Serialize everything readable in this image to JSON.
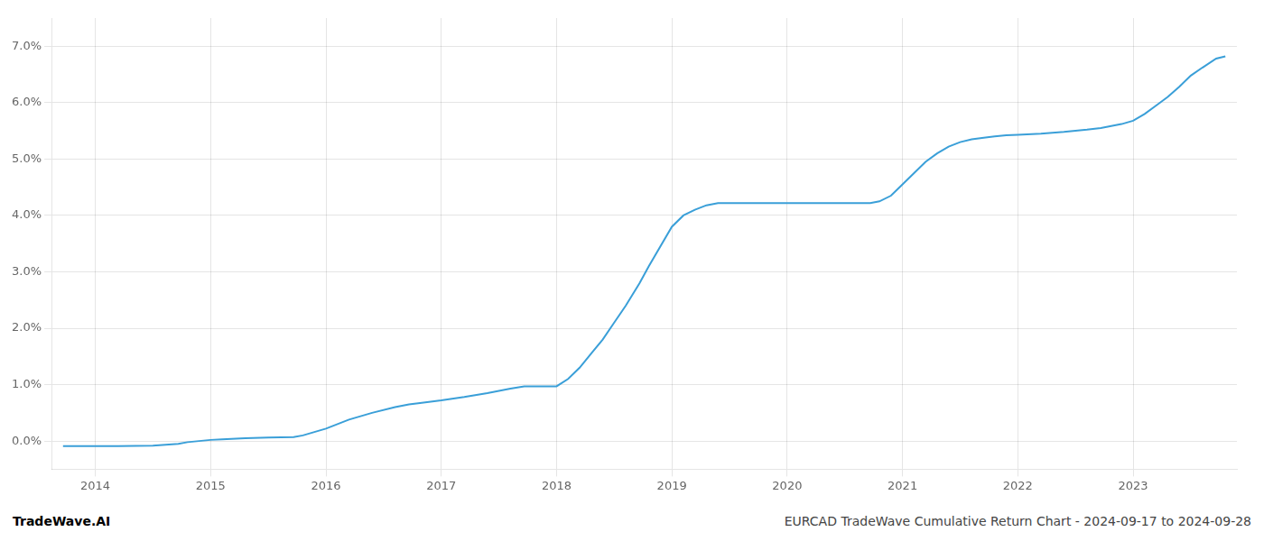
{
  "chart_data": {
    "type": "line",
    "x": [
      2013.72,
      2013.8,
      2013.95,
      2014.0,
      2014.2,
      2014.5,
      2014.72,
      2014.8,
      2015.0,
      2015.1,
      2015.3,
      2015.5,
      2015.72,
      2015.8,
      2016.0,
      2016.2,
      2016.4,
      2016.6,
      2016.72,
      2016.8,
      2017.0,
      2017.2,
      2017.4,
      2017.6,
      2017.72,
      2017.8,
      2017.9,
      2018.0,
      2018.1,
      2018.2,
      2018.3,
      2018.4,
      2018.5,
      2018.6,
      2018.72,
      2018.8,
      2019.0,
      2019.1,
      2019.2,
      2019.3,
      2019.4,
      2019.5,
      2019.6,
      2019.72,
      2019.8,
      2019.9,
      2020.0,
      2020.2,
      2020.4,
      2020.6,
      2020.72,
      2020.8,
      2020.9,
      2021.0,
      2021.1,
      2021.2,
      2021.3,
      2021.4,
      2021.5,
      2021.6,
      2021.72,
      2021.8,
      2021.9,
      2022.0,
      2022.2,
      2022.4,
      2022.6,
      2022.72,
      2022.8,
      2022.9,
      2023.0,
      2023.1,
      2023.2,
      2023.3,
      2023.4,
      2023.5,
      2023.6,
      2023.72,
      2023.8
    ],
    "values": [
      -0.09,
      -0.09,
      -0.09,
      -0.09,
      -0.09,
      -0.08,
      -0.05,
      -0.02,
      0.02,
      0.03,
      0.05,
      0.06,
      0.07,
      0.1,
      0.22,
      0.38,
      0.5,
      0.6,
      0.65,
      0.67,
      0.72,
      0.78,
      0.85,
      0.93,
      0.97,
      0.97,
      0.97,
      0.97,
      1.1,
      1.3,
      1.55,
      1.8,
      2.1,
      2.4,
      2.8,
      3.1,
      3.8,
      4.0,
      4.1,
      4.18,
      4.22,
      4.22,
      4.22,
      4.22,
      4.22,
      4.22,
      4.22,
      4.22,
      4.22,
      4.22,
      4.22,
      4.25,
      4.35,
      4.55,
      4.75,
      4.95,
      5.1,
      5.22,
      5.3,
      5.35,
      5.38,
      5.4,
      5.42,
      5.43,
      5.45,
      5.48,
      5.52,
      5.55,
      5.58,
      5.62,
      5.68,
      5.8,
      5.95,
      6.1,
      6.28,
      6.48,
      6.62,
      6.78,
      6.82
    ],
    "color": "#3a9fd8",
    "xlim": [
      2013.62,
      2023.9
    ],
    "xticks": [
      2014,
      2015,
      2016,
      2017,
      2018,
      2019,
      2020,
      2021,
      2022,
      2023
    ],
    "ylim": [
      -0.5,
      7.5
    ],
    "yticks": [
      {
        "value": 0.0,
        "label": "0.0%"
      },
      {
        "value": 1.0,
        "label": "1.0%"
      },
      {
        "value": 2.0,
        "label": "2.0%"
      },
      {
        "value": 3.0,
        "label": "3.0%"
      },
      {
        "value": 4.0,
        "label": "4.0%"
      },
      {
        "value": 5.0,
        "label": "5.0%"
      },
      {
        "value": 6.0,
        "label": "6.0%"
      },
      {
        "value": 7.0,
        "label": "7.0%"
      }
    ],
    "grid": true,
    "annotations": [
      "TradeWave.AI",
      "EURCAD TradeWave Cumulative Return Chart - 2024-09-17 to 2024-09-28"
    ]
  }
}
